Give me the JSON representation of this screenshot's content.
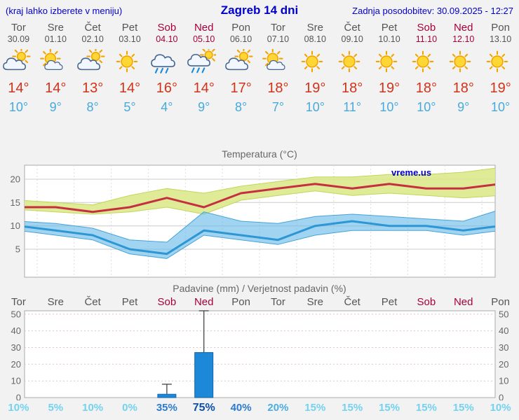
{
  "header": {
    "left_note": "(kraj lahko izberete v meniju)",
    "title": "Zagreb 14 dni",
    "updated": "Zadnja posodobitev: 30.09.2025 - 12:27"
  },
  "watermark": "vreme.us",
  "colors": {
    "title_blue": "#0000CC",
    "weekend_red": "#A6003C",
    "high_red": "#D23218",
    "low_blue": "#46AADC",
    "max_line": "#C53040",
    "max_band": "#DCE98C",
    "min_line": "#2D96D5",
    "min_band": "#62B7E6",
    "bar_fill": "#1E88D8",
    "bar_stroke": "#0F66AA"
  },
  "days": [
    {
      "name": "Tor",
      "date": "30.09",
      "weekend": false,
      "icon": "cloud-sun",
      "high": "14°",
      "low": "10°"
    },
    {
      "name": "Sre",
      "date": "01.10",
      "weekend": false,
      "icon": "sun-cloud",
      "high": "14°",
      "low": "9°"
    },
    {
      "name": "Čet",
      "date": "02.10",
      "weekend": false,
      "icon": "cloud-sun",
      "high": "13°",
      "low": "8°"
    },
    {
      "name": "Pet",
      "date": "03.10",
      "weekend": false,
      "icon": "sun",
      "high": "14°",
      "low": "5°"
    },
    {
      "name": "Sob",
      "date": "04.10",
      "weekend": true,
      "icon": "rain",
      "high": "16°",
      "low": "4°"
    },
    {
      "name": "Ned",
      "date": "05.10",
      "weekend": true,
      "icon": "rain-sun",
      "high": "14°",
      "low": "9°"
    },
    {
      "name": "Pon",
      "date": "06.10",
      "weekend": false,
      "icon": "cloud-sun",
      "high": "17°",
      "low": "8°"
    },
    {
      "name": "Tor",
      "date": "07.10",
      "weekend": false,
      "icon": "sun-cloud",
      "high": "18°",
      "low": "7°"
    },
    {
      "name": "Sre",
      "date": "08.10",
      "weekend": false,
      "icon": "sun",
      "high": "19°",
      "low": "10°"
    },
    {
      "name": "Čet",
      "date": "09.10",
      "weekend": false,
      "icon": "sun",
      "high": "18°",
      "low": "11°"
    },
    {
      "name": "Pet",
      "date": "10.10",
      "weekend": false,
      "icon": "sun",
      "high": "19°",
      "low": "10°"
    },
    {
      "name": "Sob",
      "date": "11.10",
      "weekend": true,
      "icon": "sun",
      "high": "18°",
      "low": "10°"
    },
    {
      "name": "Ned",
      "date": "12.10",
      "weekend": true,
      "icon": "sun",
      "high": "18°",
      "low": "9°"
    },
    {
      "name": "Pon",
      "date": "13.10",
      "weekend": false,
      "icon": "sun",
      "high": "19°",
      "low": "10°"
    }
  ],
  "chart_data": [
    {
      "type": "line",
      "title": "Temperatura (°C)",
      "x": [
        "Tor",
        "Sre",
        "Čet",
        "Pet",
        "Sob",
        "Ned",
        "Pon",
        "Tor",
        "Sre",
        "Čet",
        "Pet",
        "Sob",
        "Ned",
        "Pon"
      ],
      "ylim": [
        -1,
        23
      ],
      "yticks": [
        5,
        10,
        15,
        20
      ],
      "series": [
        {
          "name": "max_upper",
          "values": [
            15.5,
            15,
            14.5,
            16.5,
            18,
            17,
            18.5,
            19.5,
            20.5,
            20.5,
            21,
            21,
            21.5,
            22.5
          ]
        },
        {
          "name": "max",
          "values": [
            14,
            14,
            13,
            14,
            16,
            14,
            17,
            18,
            19,
            18,
            19,
            18,
            18,
            19
          ]
        },
        {
          "name": "max_lower",
          "values": [
            13.5,
            13,
            12.5,
            13,
            14,
            12.5,
            15.5,
            16.5,
            17.5,
            16.5,
            17,
            16.5,
            16,
            16.5
          ]
        },
        {
          "name": "min_upper",
          "values": [
            11,
            10.5,
            9.5,
            7,
            6.5,
            13,
            11,
            10.5,
            12,
            12.5,
            12,
            11.5,
            11,
            13.5
          ]
        },
        {
          "name": "min",
          "values": [
            10,
            9,
            8,
            5,
            4,
            9,
            8,
            7,
            10,
            11,
            10,
            10,
            9,
            10
          ]
        },
        {
          "name": "min_lower",
          "values": [
            9,
            8,
            7,
            4,
            3,
            8,
            7,
            6,
            8,
            9,
            9,
            9,
            8,
            9
          ]
        }
      ]
    },
    {
      "type": "bar",
      "title": "Padavine (mm) / Verjetnost padavin (%)",
      "ylim": [
        0,
        52
      ],
      "yticks": [
        0,
        10,
        20,
        30,
        40,
        50
      ],
      "precip_mm": [
        0,
        0,
        0,
        0,
        2,
        27,
        0,
        0,
        0,
        0,
        0,
        0,
        0,
        0
      ],
      "precip_max_mm": [
        0,
        0,
        0,
        0,
        8,
        52,
        0,
        0,
        0,
        0,
        0,
        0,
        0,
        0
      ],
      "probability_pct": [
        10,
        5,
        10,
        0,
        35,
        75,
        40,
        20,
        15,
        15,
        15,
        15,
        15,
        10
      ]
    }
  ]
}
